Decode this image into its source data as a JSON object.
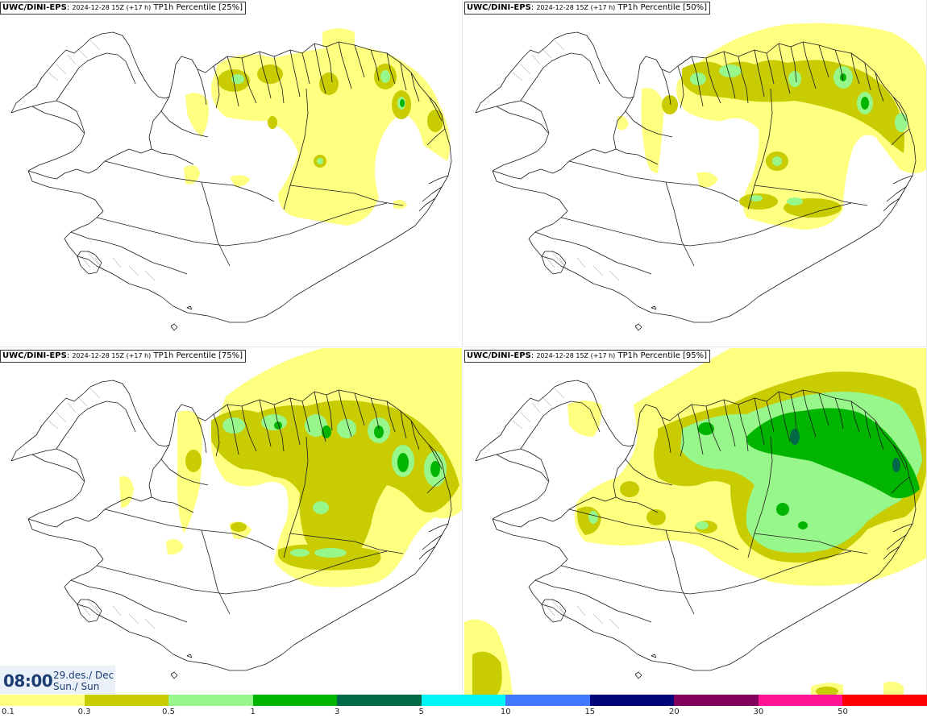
{
  "panels": [
    {
      "model": "UWC/DINI-EPS",
      "issue": "2024-12-28 15Z (+17 h)",
      "field": "TP1h Percentile [25%]"
    },
    {
      "model": "UWC/DINI-EPS",
      "issue": "2024-12-28 15Z (+17 h)",
      "field": "TP1h Percentile [50%]"
    },
    {
      "model": "UWC/DINI-EPS",
      "issue": "2024-12-28 15Z (+17 h)",
      "field": "TP1h Percentile [75%]"
    },
    {
      "model": "UWC/DINI-EPS",
      "issue": "2024-12-28 15Z (+17 h)",
      "field": "TP1h Percentile [95%]"
    }
  ],
  "timebox": {
    "time": "08:00",
    "date_line1": "29.des./ Dec",
    "date_line2": "Sun./ Sun"
  },
  "legend": {
    "labels": [
      "0.1",
      "0.3",
      "0.5",
      "1",
      "3",
      "5",
      "10",
      "15",
      "20",
      "30",
      "50"
    ],
    "colors": [
      "#ffff80",
      "#c8cc00",
      "#98f78a",
      "#00b400",
      "#006a48",
      "#00f5f5",
      "#4079ff",
      "#00067a",
      "#80005a",
      "#ff1493",
      "#ff0000"
    ]
  },
  "map_colors": {
    "c1": "#ffff80",
    "c2": "#c8cc00",
    "c3": "#98f78a",
    "c4": "#00b400",
    "c5": "#006a48"
  }
}
